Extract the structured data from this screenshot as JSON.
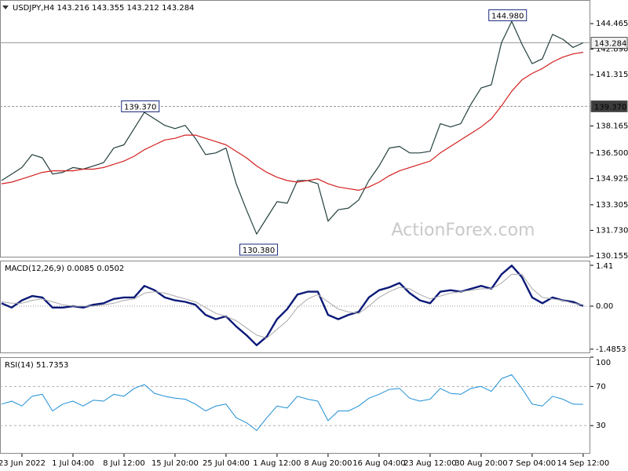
{
  "chart_data": [
    {
      "type": "line",
      "title": "USDJPY,H4 143.216 143.355 143.212 143.284",
      "watermark": "ActionForex.com",
      "x": [
        -2,
        -1,
        0,
        1,
        2,
        3,
        4,
        5,
        6,
        7,
        8,
        9,
        10,
        11,
        12,
        13,
        14,
        15,
        16,
        17,
        18,
        19,
        20,
        21,
        22,
        23,
        24,
        25,
        26,
        27,
        28,
        29,
        30,
        31,
        32,
        33,
        34,
        35,
        36,
        37,
        38,
        39,
        40,
        41,
        42,
        43,
        44,
        45,
        46,
        47,
        48,
        49,
        50,
        51,
        52,
        53,
        54,
        55
      ],
      "xlim": [
        -2.15,
        55.7
      ],
      "xticks": [
        {
          "value": 0,
          "label": "23 Jun 2022"
        },
        {
          "value": 5,
          "label": "1 Jul 04:00"
        },
        {
          "value": 10,
          "label": "8 Jul 12:00"
        },
        {
          "value": 15,
          "label": "15 Jul 20:00"
        },
        {
          "value": 20,
          "label": "25 Jul 04:00"
        },
        {
          "value": 25,
          "label": "1 Aug 12:00"
        },
        {
          "value": 30,
          "label": "8 Aug 20:00"
        },
        {
          "value": 35,
          "label": "16 Aug 04:00"
        },
        {
          "value": 40,
          "label": "23 Aug 12:00"
        },
        {
          "value": 45,
          "label": "30 Aug 20:00"
        },
        {
          "value": 50,
          "label": "7 Sep 04:00"
        },
        {
          "value": 55,
          "label": "14 Sep 12:00"
        }
      ],
      "ylim": [
        130.06,
        145.92
      ],
      "yticks": [
        144.465,
        {
          "value": 142.89,
          "label": "142.890"
        },
        141.315,
        {
          "value": 138.165,
          "label": "138.165"
        },
        {
          "value": 136.5,
          "label": "136.500"
        },
        134.925,
        133.305,
        {
          "value": 131.73,
          "label": "131.730"
        },
        130.155
      ],
      "series": [
        {
          "color": "#24403f",
          "values": [
            134.8,
            135.2,
            135.6,
            136.4,
            136.2,
            135.2,
            135.3,
            135.6,
            135.5,
            135.7,
            135.9,
            136.8,
            137.0,
            138.0,
            139.0,
            138.6,
            138.2,
            138.0,
            138.2,
            137.4,
            136.4,
            136.5,
            136.8,
            134.6,
            133.0,
            131.5,
            132.5,
            133.5,
            133.4,
            134.8,
            134.8,
            134.6,
            132.3,
            133.0,
            133.1,
            133.6,
            134.8,
            135.7,
            136.8,
            136.9,
            136.5,
            136.5,
            136.6,
            138.3,
            138.1,
            138.3,
            139.5,
            140.5,
            140.7,
            143.3,
            144.6,
            143.2,
            142.0,
            142.3,
            143.8,
            143.5,
            143.0,
            143.284
          ]
        },
        {
          "color": "#d42020",
          "values": [
            134.6,
            134.7,
            134.9,
            135.1,
            135.3,
            135.4,
            135.4,
            135.4,
            135.5,
            135.5,
            135.6,
            135.8,
            136.0,
            136.3,
            136.7,
            137.0,
            137.3,
            137.4,
            137.6,
            137.6,
            137.4,
            137.2,
            137.0,
            136.6,
            136.2,
            135.7,
            135.3,
            135.0,
            134.8,
            134.7,
            134.8,
            134.9,
            134.6,
            134.4,
            134.3,
            134.2,
            134.4,
            134.7,
            135.1,
            135.4,
            135.6,
            135.8,
            136.0,
            136.5,
            136.9,
            137.3,
            137.7,
            138.1,
            138.6,
            139.4,
            140.3,
            141.0,
            141.4,
            141.7,
            142.1,
            142.4,
            142.6,
            142.7
          ]
        }
      ],
      "price_lines": [
        {
          "value": 143.284,
          "label": "143.284",
          "style": "solid"
        },
        {
          "value": 139.37,
          "label": "139.370",
          "style": "dashed"
        }
      ],
      "annotations": [
        {
          "value": 144.98,
          "label": "144.980",
          "x": 47.6
        },
        {
          "value": 139.37,
          "label": "139.370",
          "x": 11.6
        },
        {
          "value": 130.38,
          "label": "130.380",
          "x": 23.2
        }
      ]
    },
    {
      "type": "line",
      "title": "MACD(12,26,9) 0.0085 0.0502",
      "ylim": [
        -1.626,
        1.572
      ],
      "yticks": [
        1.41,
        {
          "value": 0,
          "label": "0.00"
        },
        -1.4853
      ],
      "grid": false,
      "series": [
        {
          "color": "#0c1a78",
          "width": 2.4,
          "values": [
            0.1,
            -0.05,
            0.2,
            0.35,
            0.3,
            -0.05,
            -0.05,
            0.0,
            -0.05,
            0.05,
            0.1,
            0.25,
            0.3,
            0.3,
            0.7,
            0.55,
            0.3,
            0.2,
            0.15,
            0.05,
            -0.3,
            -0.45,
            -0.35,
            -0.7,
            -1.0,
            -1.35,
            -1.05,
            -0.45,
            -0.1,
            0.4,
            0.5,
            0.5,
            -0.3,
            -0.45,
            -0.3,
            -0.2,
            0.3,
            0.55,
            0.65,
            0.8,
            0.45,
            0.2,
            0.1,
            0.5,
            0.55,
            0.5,
            0.6,
            0.7,
            0.6,
            1.1,
            1.4,
            1.0,
            0.3,
            0.1,
            0.3,
            0.2,
            0.15,
            0.0085
          ]
        },
        {
          "color": "#a8a8a8",
          "width": 1,
          "values": [
            0.15,
            0.1,
            0.1,
            0.2,
            0.25,
            0.15,
            0.05,
            0.0,
            0.0,
            0.0,
            0.05,
            0.1,
            0.2,
            0.25,
            0.45,
            0.5,
            0.45,
            0.35,
            0.25,
            0.15,
            -0.05,
            -0.25,
            -0.35,
            -0.5,
            -0.75,
            -1.0,
            -1.1,
            -0.8,
            -0.5,
            -0.05,
            0.25,
            0.4,
            0.15,
            -0.1,
            -0.2,
            -0.25,
            0.0,
            0.3,
            0.5,
            0.65,
            0.6,
            0.4,
            0.25,
            0.35,
            0.45,
            0.5,
            0.55,
            0.6,
            0.6,
            0.8,
            1.1,
            1.1,
            0.6,
            0.3,
            0.25,
            0.2,
            0.1,
            0.0502
          ]
        }
      ]
    },
    {
      "type": "line",
      "title": "RSI(14) 51.7353",
      "ylim": [
        1.2,
        100
      ],
      "yticks": [
        100,
        70,
        30
      ],
      "grid": true,
      "series": [
        {
          "color": "#1e8fd6",
          "width": 1,
          "values": [
            52,
            55,
            50,
            60,
            62,
            45,
            52,
            55,
            50,
            56,
            55,
            62,
            60,
            68,
            72,
            63,
            60,
            58,
            57,
            52,
            45,
            50,
            52,
            38,
            33,
            25,
            38,
            50,
            48,
            60,
            57,
            55,
            35,
            45,
            45,
            50,
            58,
            62,
            67,
            68,
            58,
            55,
            57,
            68,
            63,
            62,
            68,
            70,
            65,
            78,
            82,
            68,
            52,
            50,
            60,
            57,
            52,
            51.7353
          ]
        }
      ]
    }
  ]
}
